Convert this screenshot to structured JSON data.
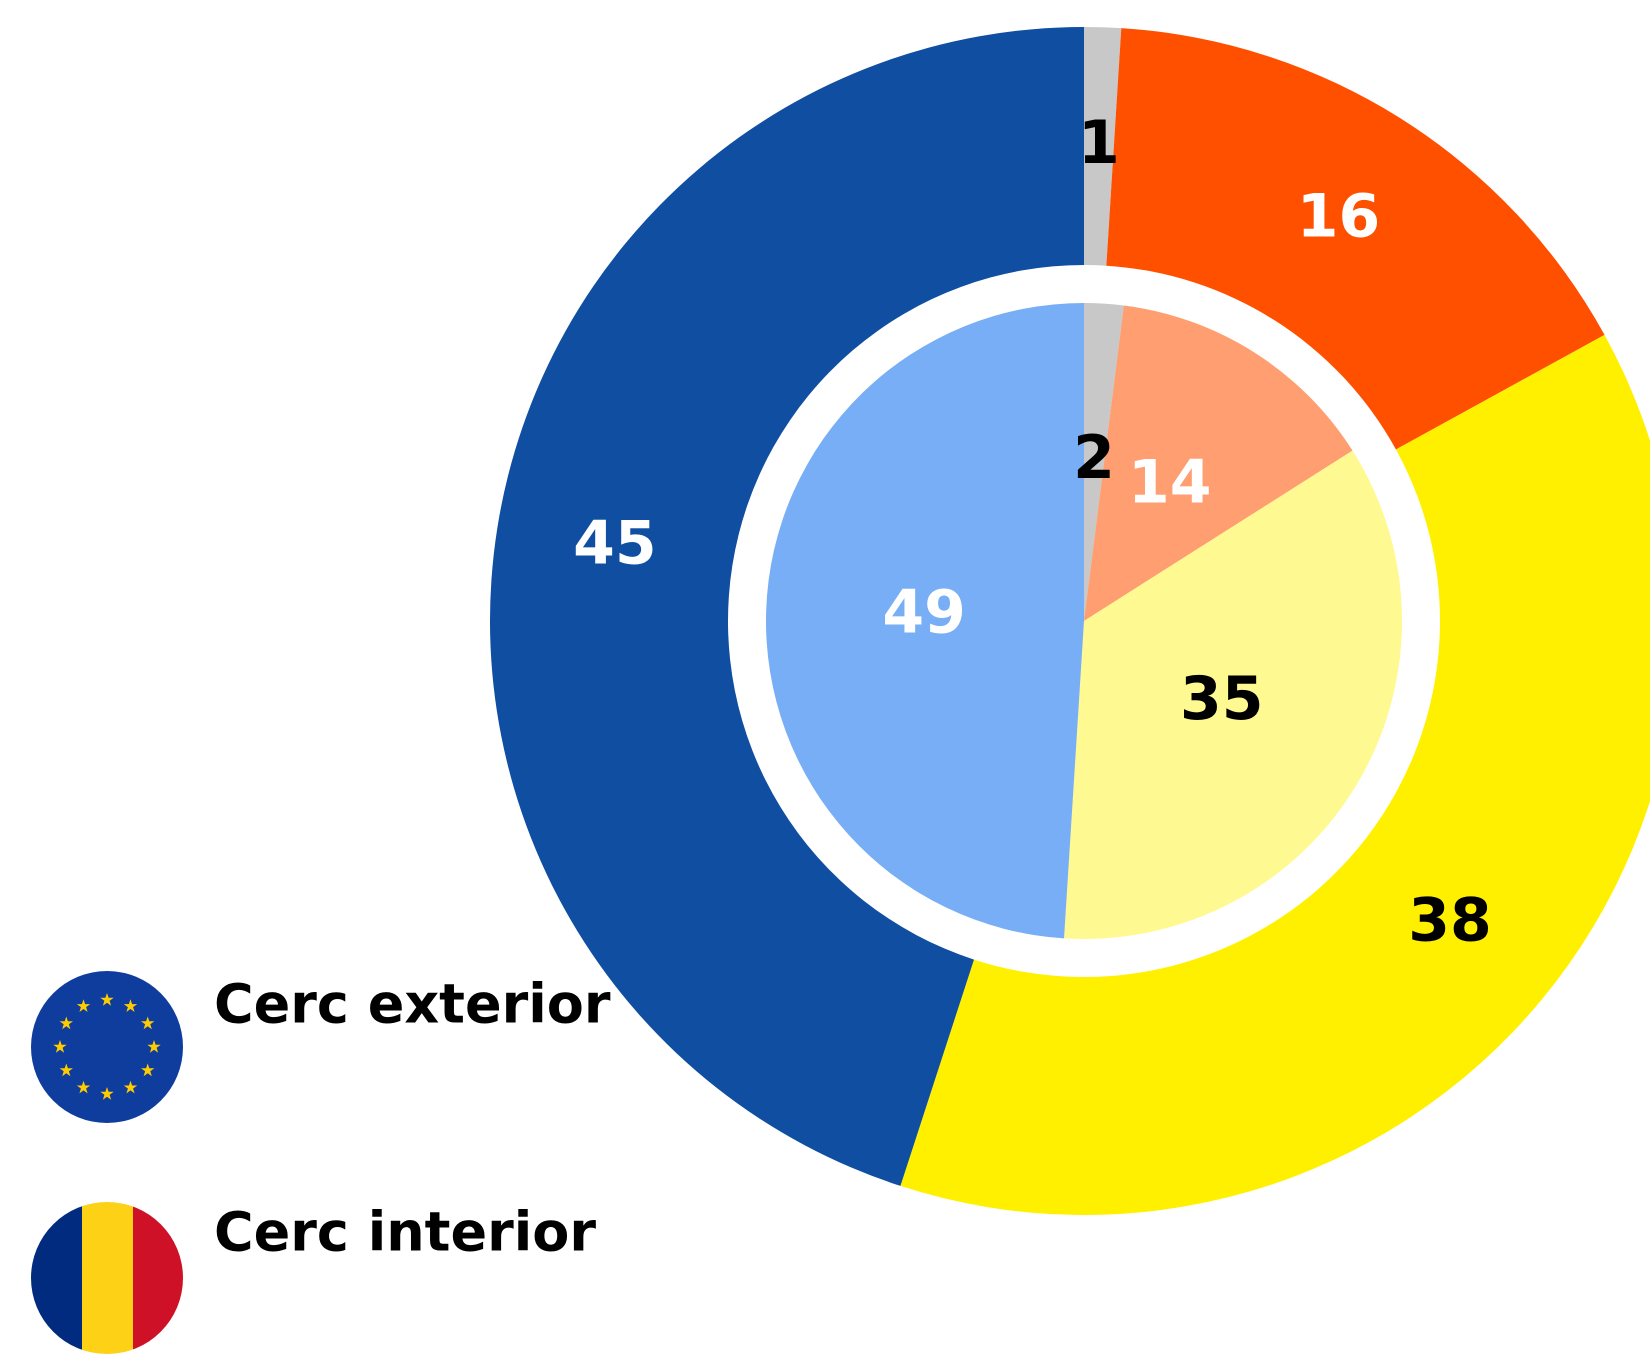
{
  "chart_data": {
    "type": "pie",
    "series": [
      {
        "name": "Cerc exterior",
        "categories": [
          null,
          null,
          null,
          null
        ],
        "values": [
          1,
          16,
          38,
          45
        ],
        "colors": [
          "#c8c8c8",
          "#ff5000",
          "#fff000",
          "#0f4ea1"
        ],
        "label_colors": [
          "#000000",
          "#ffffff",
          "#000000",
          "#ffffff"
        ]
      },
      {
        "name": "Cerc interior",
        "categories": [
          null,
          null,
          null,
          null
        ],
        "values": [
          2,
          14,
          35,
          49
        ],
        "colors": [
          "#c8c8c8",
          "#ff9e70",
          "#fff991",
          "#78aef5"
        ],
        "label_colors": [
          "#000000",
          "#ffffff",
          "#000000",
          "#ffffff"
        ]
      }
    ]
  }
}
